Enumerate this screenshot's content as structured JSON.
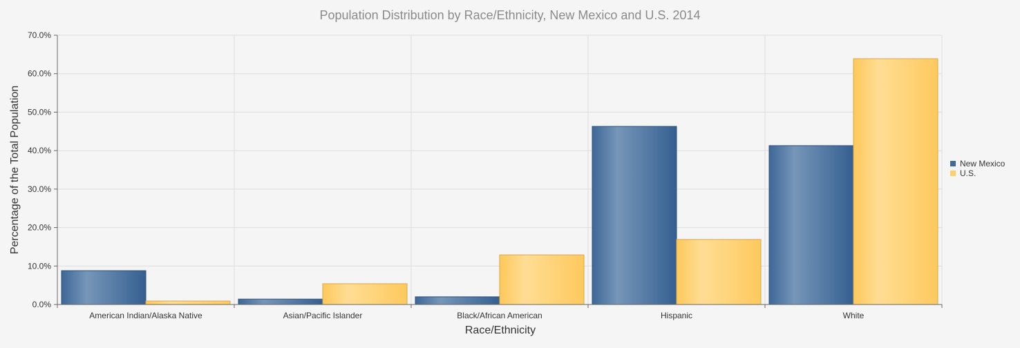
{
  "chart_data": {
    "type": "bar",
    "title": "Population Distribution by Race/Ethnicity, New Mexico and U.S. 2014",
    "xlabel": "Race/Ethnicity",
    "ylabel": "Percentage of the Total Population",
    "categories": [
      "American Indian/Alaska Native",
      "Asian/Pacific Islander",
      "Black/African American",
      "Hispanic",
      "White"
    ],
    "series": [
      {
        "name": "New Mexico",
        "values": [
          8.8,
          1.4,
          2.0,
          46.3,
          41.3
        ],
        "color": "#3f6a99"
      },
      {
        "name": "U.S.",
        "values": [
          0.9,
          5.4,
          12.9,
          16.9,
          63.9
        ],
        "color": "#ffd06a"
      }
    ],
    "ylim": [
      0,
      70
    ],
    "yticks": [
      "0.0%",
      "10.0%",
      "20.0%",
      "30.0%",
      "40.0%",
      "50.0%",
      "60.0%",
      "70.0%"
    ],
    "grid": true,
    "legend": "right"
  }
}
